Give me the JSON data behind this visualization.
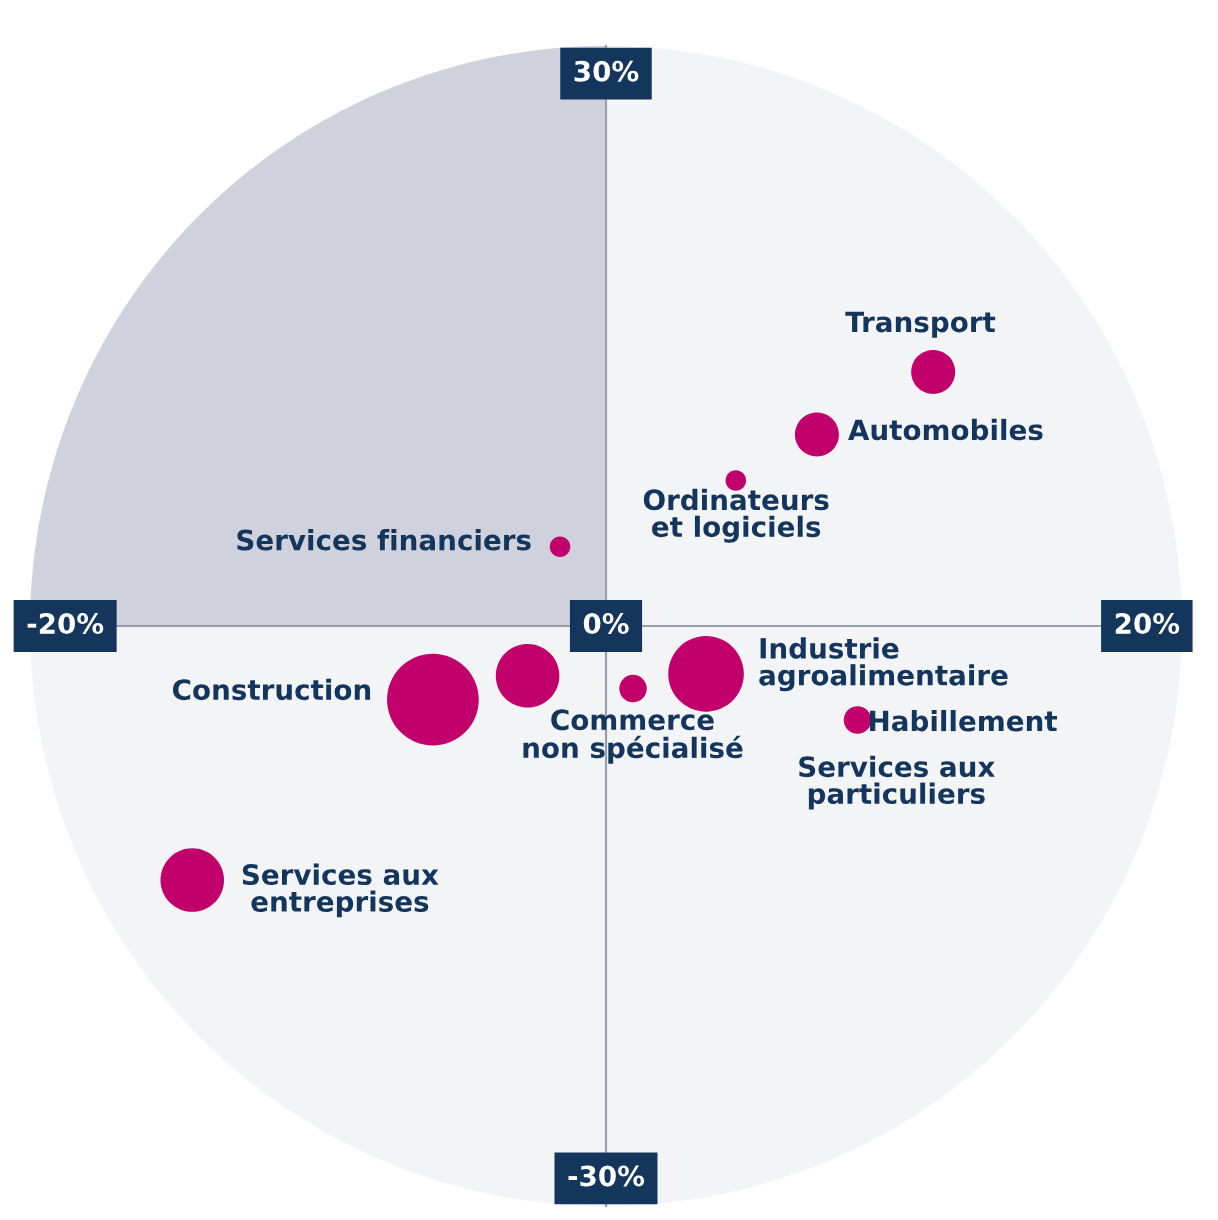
{
  "chart_data": {
    "type": "bubble",
    "xlim": [
      -21.3,
      21.3
    ],
    "ylim": [
      -31.5,
      31.5
    ],
    "xticks": [
      {
        "value": -20,
        "label": "-20%"
      },
      {
        "value": 0,
        "label": "0%"
      },
      {
        "value": 20,
        "label": "20%"
      }
    ],
    "yticks": [
      {
        "value": -30,
        "label": "-30%"
      },
      {
        "value": 30,
        "label": "30%"
      }
    ],
    "series": [
      {
        "color": "#c2006b",
        "x": [
          12.1,
          7.8,
          4.8,
          -1.7,
          -6.4,
          -2.9,
          1.0,
          3.7,
          9.3,
          -15.3
        ],
        "values": [
          13.8,
          10.4,
          7.9,
          4.3,
          -4.0,
          -2.7,
          -3.4,
          -2.6,
          -5.1,
          -13.8
        ],
        "sizes": [
          0.23,
          0.23,
          0.05,
          0.05,
          1,
          0.48,
          0.09,
          0.68,
          0.09,
          0.48
        ]
      }
    ],
    "annotations": [
      "Transport",
      "Automobiles",
      "Ordinateurs\net logiciels",
      "Services financiers",
      "Construction",
      "Commerce\nnon spécialisé",
      "Industrie\nagroalimentaire",
      "Habillement",
      "Services aux\nparticuliers",
      "Services aux\nentreprises"
    ],
    "grid": false,
    "legend": false
  }
}
